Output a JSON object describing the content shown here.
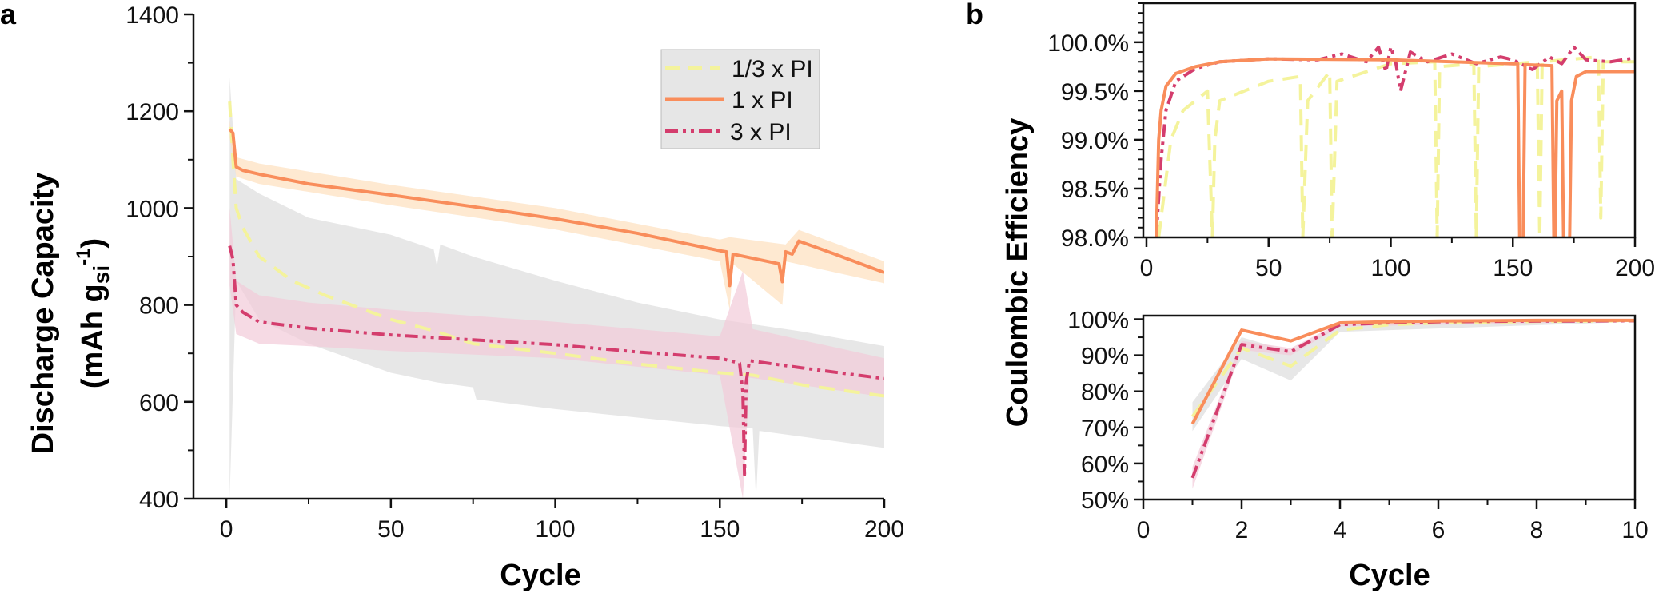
{
  "colors": {
    "third_pi": "#f4f39c",
    "one_pi": "#f98d5b",
    "three_pi": "#d43d6d",
    "band_third": "#e3e3e3",
    "band_one": "#fde0bd",
    "band_three": "#f2cbd8"
  },
  "chart_data": [
    {
      "type": "line",
      "panel_label": "a",
      "xlabel": "Cycle",
      "ylabel": "Discharge Capacity",
      "ylabel_line2": "(mAh g",
      "ylabel_sub": "si",
      "ylabel_sup": "-1",
      "ylabel_close": ")",
      "xlim": [
        -10,
        200
      ],
      "ylim": [
        400,
        1400
      ],
      "xticks": [
        "0",
        "50",
        "100",
        "150",
        "200"
      ],
      "yticks": [
        "400",
        "600",
        "800",
        "1000",
        "1200",
        "1400"
      ],
      "legend": {
        "placement": "top-right",
        "entries": [
          "1/3 x PI",
          "1 x PI",
          "3 x PI"
        ]
      },
      "series": [
        {
          "name": "1/3 x PI",
          "style": "dashed",
          "points": [
            [
              1,
              1220
            ],
            [
              2,
              1100
            ],
            [
              3,
              1000
            ],
            [
              5,
              960
            ],
            [
              10,
              900
            ],
            [
              20,
              850
            ],
            [
              30,
              820
            ],
            [
              50,
              770
            ],
            [
              64,
              745
            ],
            [
              75,
              720
            ],
            [
              100,
              700
            ],
            [
              125,
              678
            ],
            [
              150,
              660
            ],
            [
              160,
              655
            ],
            [
              175,
              635
            ],
            [
              200,
              612
            ]
          ],
          "upper": [
            [
              1,
              1270
            ],
            [
              3,
              1060
            ],
            [
              10,
              1030
            ],
            [
              25,
              980
            ],
            [
              50,
              945
            ],
            [
              63,
              915
            ],
            [
              64,
              880
            ],
            [
              65,
              925
            ],
            [
              75,
              900
            ],
            [
              100,
              850
            ],
            [
              125,
              805
            ],
            [
              150,
              770
            ],
            [
              175,
              745
            ],
            [
              200,
              715
            ]
          ],
          "lower": [
            [
              1,
              400
            ],
            [
              3,
              850
            ],
            [
              10,
              770
            ],
            [
              25,
              720
            ],
            [
              50,
              660
            ],
            [
              64,
              640
            ],
            [
              75,
              630
            ],
            [
              76,
              605
            ],
            [
              100,
              585
            ],
            [
              150,
              550
            ],
            [
              160,
              545
            ],
            [
              161,
              400
            ],
            [
              162,
              540
            ],
            [
              200,
              505
            ]
          ]
        },
        {
          "name": "1 x PI",
          "style": "solid",
          "points": [
            [
              1,
              1163
            ],
            [
              2,
              1155
            ],
            [
              3,
              1085
            ],
            [
              5,
              1078
            ],
            [
              10,
              1070
            ],
            [
              25,
              1050
            ],
            [
              50,
              1027
            ],
            [
              75,
              1003
            ],
            [
              100,
              978
            ],
            [
              125,
              948
            ],
            [
              150,
              912
            ],
            [
              152,
              910
            ],
            [
              153,
              840
            ],
            [
              154,
              905
            ],
            [
              168,
              885
            ],
            [
              169,
              848
            ],
            [
              170,
              910
            ],
            [
              172,
              905
            ],
            [
              174,
              932
            ],
            [
              185,
              905
            ],
            [
              200,
              867
            ]
          ],
          "upper": [
            [
              1,
              1180
            ],
            [
              3,
              1105
            ],
            [
              10,
              1092
            ],
            [
              50,
              1048
            ],
            [
              100,
              1000
            ],
            [
              150,
              935
            ],
            [
              153,
              940
            ],
            [
              170,
              925
            ],
            [
              174,
              955
            ],
            [
              200,
              890
            ]
          ],
          "lower": [
            [
              1,
              1145
            ],
            [
              3,
              1065
            ],
            [
              10,
              1050
            ],
            [
              50,
              1006
            ],
            [
              100,
              956
            ],
            [
              150,
              890
            ],
            [
              153,
              790
            ],
            [
              154,
              885
            ],
            [
              169,
              800
            ],
            [
              170,
              890
            ],
            [
              200,
              845
            ]
          ]
        },
        {
          "name": "3 x PI",
          "style": "dash-dot",
          "points": [
            [
              1,
              922
            ],
            [
              2,
              895
            ],
            [
              3,
              800
            ],
            [
              5,
              785
            ],
            [
              10,
              765
            ],
            [
              25,
              752
            ],
            [
              50,
              738
            ],
            [
              75,
              728
            ],
            [
              100,
              718
            ],
            [
              125,
              703
            ],
            [
              150,
              690
            ],
            [
              156,
              680
            ],
            [
              157,
              620
            ],
            [
              157.5,
              450
            ],
            [
              158,
              640
            ],
            [
              159,
              685
            ],
            [
              175,
              670
            ],
            [
              200,
              648
            ]
          ],
          "upper": [
            [
              1,
              1000
            ],
            [
              3,
              850
            ],
            [
              10,
              820
            ],
            [
              25,
              805
            ],
            [
              50,
              790
            ],
            [
              100,
              765
            ],
            [
              150,
              735
            ],
            [
              157,
              870
            ],
            [
              160,
              750
            ],
            [
              200,
              690
            ]
          ],
          "lower": [
            [
              1,
              840
            ],
            [
              3,
              740
            ],
            [
              10,
              720
            ],
            [
              25,
              715
            ],
            [
              50,
              705
            ],
            [
              100,
              690
            ],
            [
              150,
              655
            ],
            [
              157,
              400
            ],
            [
              159,
              650
            ],
            [
              200,
              610
            ]
          ]
        }
      ]
    },
    {
      "type": "line",
      "panel_label": "b",
      "ylabel": "Coulombic Efficiency",
      "xlim": [
        -1.3,
        200
      ],
      "ylim": [
        98.0,
        100.4
      ],
      "xticks": [
        "0",
        "50",
        "100",
        "150",
        "200"
      ],
      "yticks": [
        "98.0%",
        "98.5%",
        "99.0%",
        "99.5%",
        "100.0%"
      ],
      "series": [
        {
          "name": "1/3 x PI",
          "style": "dashed",
          "points": [
            [
              5,
              98.0
            ],
            [
              10,
              99.0
            ],
            [
              15,
              99.3
            ],
            [
              25,
              99.5
            ],
            [
              27,
              98.0
            ],
            [
              28,
              99.0
            ],
            [
              30,
              99.4
            ],
            [
              50,
              99.6
            ],
            [
              63,
              99.65
            ],
            [
              64,
              98.0
            ],
            [
              66,
              99.4
            ],
            [
              75,
              99.7
            ],
            [
              76,
              98.0
            ],
            [
              78,
              99.6
            ],
            [
              100,
              99.78
            ],
            [
              118,
              99.8
            ],
            [
              119,
              98.0
            ],
            [
              120,
              99.75
            ],
            [
              134,
              99.78
            ],
            [
              135,
              98.0
            ],
            [
              136,
              99.75
            ],
            [
              160,
              99.8
            ],
            [
              161,
              98.0
            ],
            [
              162,
              99.8
            ],
            [
              185,
              99.85
            ],
            [
              186,
              98.2
            ],
            [
              187,
              99.8
            ],
            [
              200,
              99.8
            ]
          ]
        },
        {
          "name": "1 x PI",
          "style": "solid",
          "points": [
            [
              4,
              98.0
            ],
            [
              5,
              99.0
            ],
            [
              6,
              99.3
            ],
            [
              8,
              99.55
            ],
            [
              12,
              99.68
            ],
            [
              20,
              99.75
            ],
            [
              30,
              99.8
            ],
            [
              50,
              99.83
            ],
            [
              100,
              99.82
            ],
            [
              150,
              99.78
            ],
            [
              152,
              99.78
            ],
            [
              153,
              97.5
            ],
            [
              154,
              97.5
            ],
            [
              155,
              99.77
            ],
            [
              166,
              99.76
            ],
            [
              167,
              97.5
            ],
            [
              168,
              99.4
            ],
            [
              170,
              99.5
            ],
            [
              171,
              97.5
            ],
            [
              173,
              97.5
            ],
            [
              174,
              99.4
            ],
            [
              176,
              99.65
            ],
            [
              180,
              99.7
            ],
            [
              200,
              99.7
            ]
          ]
        },
        {
          "name": "3 x PI",
          "style": "dash-dot",
          "points": [
            [
              4,
              98.0
            ],
            [
              6,
              98.8
            ],
            [
              8,
              99.3
            ],
            [
              12,
              99.6
            ],
            [
              20,
              99.73
            ],
            [
              30,
              99.8
            ],
            [
              50,
              99.83
            ],
            [
              70,
              99.82
            ],
            [
              80,
              99.88
            ],
            [
              90,
              99.8
            ],
            [
              95,
              99.95
            ],
            [
              98,
              99.7
            ],
            [
              100,
              99.95
            ],
            [
              102,
              99.8
            ],
            [
              104,
              99.5
            ],
            [
              108,
              99.9
            ],
            [
              115,
              99.8
            ],
            [
              125,
              99.88
            ],
            [
              135,
              99.78
            ],
            [
              145,
              99.85
            ],
            [
              150,
              99.82
            ],
            [
              158,
              99.72
            ],
            [
              165,
              99.85
            ],
            [
              170,
              99.78
            ],
            [
              175,
              99.95
            ],
            [
              180,
              99.82
            ],
            [
              190,
              99.8
            ],
            [
              200,
              99.84
            ]
          ]
        }
      ]
    },
    {
      "type": "line",
      "panel_label": "",
      "xlabel": "Cycle",
      "xlim": [
        0,
        10
      ],
      "ylim": [
        50,
        101
      ],
      "xticks": [
        "0",
        "2",
        "4",
        "6",
        "8",
        "10"
      ],
      "yticks": [
        "50%",
        "60%",
        "70%",
        "80%",
        "90%",
        "100%"
      ],
      "series": [
        {
          "name": "1/3 x PI",
          "style": "dashed",
          "points": [
            [
              1,
              73
            ],
            [
              2,
              92
            ],
            [
              3,
              87
            ],
            [
              4,
              97
            ],
            [
              5,
              98.5
            ],
            [
              6,
              99
            ],
            [
              7,
              99.2
            ],
            [
              8,
              99.4
            ],
            [
              9,
              99.5
            ],
            [
              10,
              99.6
            ]
          ],
          "upper": [
            [
              1,
              77
            ],
            [
              2,
              95
            ],
            [
              3,
              91
            ],
            [
              4,
              98.5
            ],
            [
              10,
              99.8
            ]
          ],
          "lower": [
            [
              1,
              69
            ],
            [
              2,
              89
            ],
            [
              3,
              83
            ],
            [
              4,
              96.5
            ],
            [
              10,
              99.3
            ]
          ]
        },
        {
          "name": "1 x PI",
          "style": "solid",
          "points": [
            [
              1,
              71
            ],
            [
              2,
              97
            ],
            [
              3,
              94
            ],
            [
              4,
              99
            ],
            [
              5,
              99.3
            ],
            [
              6,
              99.5
            ],
            [
              7,
              99.6
            ],
            [
              8,
              99.7
            ],
            [
              9,
              99.7
            ],
            [
              10,
              99.7
            ]
          ]
        },
        {
          "name": "3 x PI",
          "style": "dash-dot",
          "points": [
            [
              1,
              56
            ],
            [
              2,
              93
            ],
            [
              3,
              91
            ],
            [
              4,
              98.5
            ],
            [
              5,
              99
            ],
            [
              6,
              99.3
            ],
            [
              7,
              99.4
            ],
            [
              8,
              99.5
            ],
            [
              9,
              99.5
            ],
            [
              10,
              99.6
            ]
          ],
          "upper": [
            [
              1,
              59
            ],
            [
              2,
              94
            ],
            [
              3,
              92
            ],
            [
              4,
              99
            ],
            [
              10,
              99.8
            ]
          ],
          "lower": [
            [
              1,
              53
            ],
            [
              2,
              91.5
            ],
            [
              3,
              90
            ],
            [
              4,
              98
            ],
            [
              10,
              99.4
            ]
          ]
        }
      ]
    }
  ]
}
